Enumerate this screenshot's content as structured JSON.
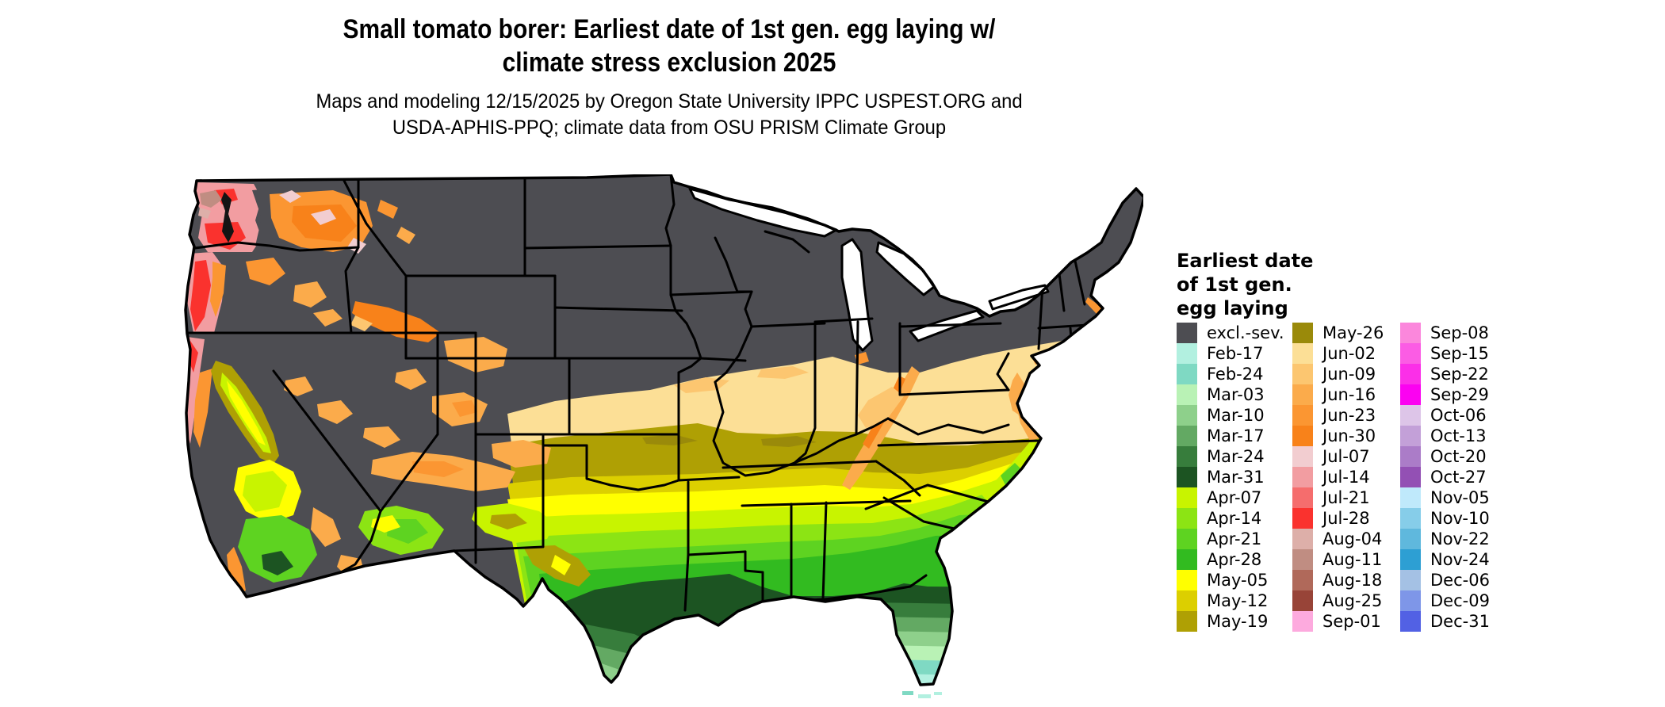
{
  "title": {
    "line1": "Small tomato borer: Earliest date of 1st gen. egg laying w/",
    "line2": "climate stress exclusion 2025"
  },
  "subtitle": {
    "line1": "Maps and modeling 12/15/2025 by Oregon State University IPPC USPEST.ORG and",
    "line2": "USDA-APHIS-PPQ; climate data from OSU PRISM Climate Group"
  },
  "map": {
    "base_land_color": "#4d4d52",
    "water_background_color": "#ffffff",
    "border_color": "#000000"
  },
  "legend": {
    "title": "Earliest date of 1st gen. egg laying",
    "columns": [
      [
        {
          "label": "excl.-sev.",
          "color": "#4d4d52"
        },
        {
          "label": "Feb-17",
          "color": "#b2f0e0"
        },
        {
          "label": "Feb-24",
          "color": "#7fd9c3"
        },
        {
          "label": "Mar-03",
          "color": "#b9f2b5"
        },
        {
          "label": "Mar-10",
          "color": "#8ed08b"
        },
        {
          "label": "Mar-17",
          "color": "#63a963"
        },
        {
          "label": "Mar-24",
          "color": "#377d3c"
        },
        {
          "label": "Mar-31",
          "color": "#1c5422"
        },
        {
          "label": "Apr-07",
          "color": "#c8f400"
        },
        {
          "label": "Apr-14",
          "color": "#8ce414"
        },
        {
          "label": "Apr-21",
          "color": "#5ed321"
        },
        {
          "label": "Apr-28",
          "color": "#32bb20"
        },
        {
          "label": "May-05",
          "color": "#ffff00"
        },
        {
          "label": "May-12",
          "color": "#dccf00"
        },
        {
          "label": "May-19",
          "color": "#afa004"
        }
      ],
      [
        {
          "label": "May-26",
          "color": "#9a8a0a"
        },
        {
          "label": "Jun-02",
          "color": "#fcdf96"
        },
        {
          "label": "Jun-09",
          "color": "#fcc670"
        },
        {
          "label": "Jun-16",
          "color": "#fbab4b"
        },
        {
          "label": "Jun-23",
          "color": "#fb9632"
        },
        {
          "label": "Jun-30",
          "color": "#f8821a"
        },
        {
          "label": "Jul-07",
          "color": "#f2cdd0"
        },
        {
          "label": "Jul-14",
          "color": "#f29da1"
        },
        {
          "label": "Jul-21",
          "color": "#f56d6d"
        },
        {
          "label": "Jul-28",
          "color": "#fa322e"
        },
        {
          "label": "Aug-04",
          "color": "#ddafa9"
        },
        {
          "label": "Aug-11",
          "color": "#c08d82"
        },
        {
          "label": "Aug-18",
          "color": "#b0695a"
        },
        {
          "label": "Aug-25",
          "color": "#984438"
        },
        {
          "label": "Sep-01",
          "color": "#fdaade"
        }
      ],
      [
        {
          "label": "Sep-08",
          "color": "#fb87dc"
        },
        {
          "label": "Sep-15",
          "color": "#fb5ce4"
        },
        {
          "label": "Sep-22",
          "color": "#fb2fe8"
        },
        {
          "label": "Sep-29",
          "color": "#fb02f1"
        },
        {
          "label": "Oct-06",
          "color": "#ddc5e8"
        },
        {
          "label": "Oct-13",
          "color": "#c3a0d8"
        },
        {
          "label": "Oct-20",
          "color": "#ab7cc8"
        },
        {
          "label": "Oct-27",
          "color": "#9350b4"
        },
        {
          "label": "Nov-05",
          "color": "#bfe9fb"
        },
        {
          "label": "Nov-10",
          "color": "#86cde9"
        },
        {
          "label": "Nov-22",
          "color": "#5fb8dd"
        },
        {
          "label": "Nov-24",
          "color": "#2d9fd3"
        },
        {
          "label": "Dec-06",
          "color": "#a4c1e4"
        },
        {
          "label": "Dec-09",
          "color": "#7e96e8"
        },
        {
          "label": "Dec-31",
          "color": "#5261e4"
        }
      ]
    ]
  }
}
